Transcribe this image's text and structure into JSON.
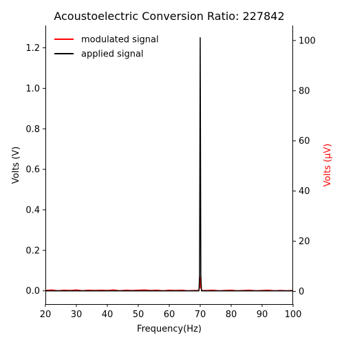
{
  "chart_data": {
    "type": "line",
    "title": "Acoustoelectric Conversion Ratio: 227842",
    "xlabel": "Frequency(Hz)",
    "ylabel_left": "Volts (V)",
    "ylabel_right": "Volts (μV)",
    "xlim": [
      20,
      100
    ],
    "ylim_left": [
      -0.0655,
      1.3105
    ],
    "ylim_right": [
      -5.06,
      106.0
    ],
    "x_ticks": [
      20,
      30,
      40,
      50,
      60,
      70,
      80,
      90,
      100
    ],
    "y_ticks_left": [
      0.0,
      0.2,
      0.4,
      0.6,
      0.8,
      1.0,
      1.2
    ],
    "y_ticks_right": [
      0,
      20,
      40,
      60,
      80,
      100
    ],
    "legend_position": "top-left",
    "grid": false,
    "series": [
      {
        "name": "applied signal",
        "axis": "left",
        "color": "#000000",
        "x": [
          20,
          69.6,
          69.8,
          70.0,
          70.2,
          70.4,
          100
        ],
        "y": [
          0.0,
          0.0,
          0.08,
          1.25,
          0.08,
          0.0,
          0.0
        ]
      },
      {
        "name": "modulated signal",
        "axis": "right",
        "color": "#ff0000",
        "x": [
          20,
          22,
          24,
          26,
          28,
          30,
          32,
          34,
          36,
          38,
          40,
          42,
          44,
          46,
          48,
          50,
          52,
          54,
          56,
          58,
          60,
          62,
          64,
          66,
          68,
          69.5,
          69.8,
          70.0,
          70.2,
          70.5,
          72,
          74,
          76,
          78,
          80,
          82,
          84,
          86,
          88,
          90,
          92,
          94,
          96,
          98,
          100
        ],
        "y": [
          0.4,
          0.6,
          0.3,
          0.5,
          0.4,
          0.6,
          0.3,
          0.5,
          0.4,
          0.5,
          0.4,
          0.6,
          0.3,
          0.5,
          0.4,
          0.5,
          0.6,
          0.4,
          0.5,
          0.3,
          0.5,
          0.4,
          0.5,
          0.3,
          0.4,
          0.4,
          1.5,
          5.6,
          1.5,
          0.4,
          0.4,
          0.5,
          0.3,
          0.4,
          0.5,
          0.3,
          0.4,
          0.5,
          0.3,
          0.4,
          0.5,
          0.3,
          0.4,
          0.3,
          0.4
        ]
      }
    ]
  }
}
